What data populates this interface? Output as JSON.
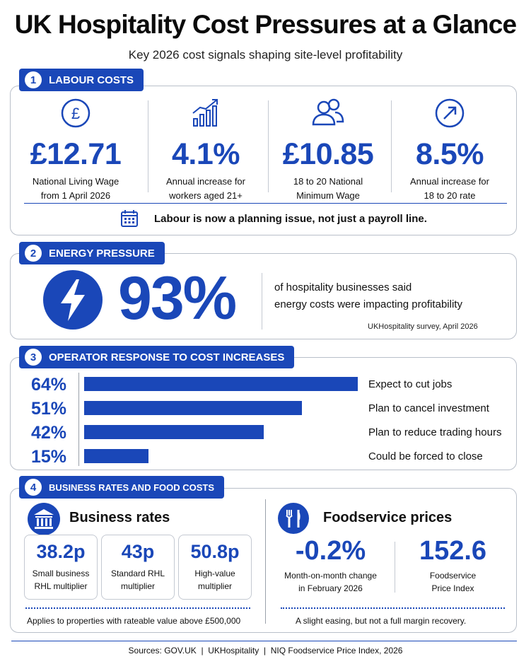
{
  "header": {
    "title": "UK Hospitality Cost Pressures at a Glance",
    "subtitle": "Key 2026 cost signals shaping site-level profitability"
  },
  "labour": {
    "number": "1",
    "heading": "LABOUR COSTS",
    "stats": [
      {
        "value": "£12.71",
        "label_line1": "National Living Wage",
        "label_line2": "from 1 April 2026",
        "icon": "pound-icon"
      },
      {
        "value": "4.1%",
        "label_line1": "Annual increase for",
        "label_line2": "workers aged 21+",
        "icon": "bar-growth-icon"
      },
      {
        "value": "£10.85",
        "label_line1": "18 to 20 National",
        "label_line2": "Minimum Wage",
        "icon": "people-icon"
      },
      {
        "value": "8.5%",
        "label_line1": "Annual increase for",
        "label_line2": "18 to 20 rate",
        "icon": "arrow-up-right-icon"
      }
    ],
    "note": "Labour is now a planning issue, not just a payroll line."
  },
  "energy": {
    "number": "2",
    "heading": "ENERGY PRESSURE",
    "value": "93%",
    "text_line1": "of hospitality businesses said",
    "text_line2": "energy costs were impacting profitability",
    "source": "UKHospitality survey, April 2026"
  },
  "response": {
    "number": "3",
    "heading": "OPERATOR RESPONSE TO COST INCREASES"
  },
  "chart_data": {
    "type": "bar",
    "categories": [
      "Expect to cut jobs",
      "Plan to cancel investment",
      "Plan to reduce trading hours",
      "Could be forced to close"
    ],
    "values": [
      64,
      51,
      42,
      15
    ],
    "value_labels": [
      "64%",
      "51%",
      "42%",
      "15%"
    ],
    "color": "#1a47b8"
  },
  "rates_food": {
    "number": "4",
    "heading": "BUSINESS RATES AND FOOD COSTS",
    "rates_title": "Business rates",
    "rates": [
      {
        "value": "38.2p",
        "label_line1": "Small business",
        "label_line2": "RHL multiplier"
      },
      {
        "value": "43p",
        "label_line1": "Standard RHL",
        "label_line2": "multiplier"
      },
      {
        "value": "50.8p",
        "label_line1": "High-value",
        "label_line2": "multiplier"
      }
    ],
    "rates_note": "Applies to properties with rateable value above £500,000",
    "food_title": "Foodservice prices",
    "food": [
      {
        "value": "-0.2%",
        "label_line1": "Month-on-month change",
        "label_line2": "in February 2026"
      },
      {
        "value": "152.6",
        "label_line1": "Foodservice",
        "label_line2": "Price Index"
      }
    ],
    "food_note": "A slight easing, but not a full margin recovery."
  },
  "footer": {
    "sources": "Sources: GOV.UK  |  UKHospitality  |  NIQ Foodservice Price Index, 2026"
  },
  "colors": {
    "accent": "#1a47b8",
    "border": "#b9bfc9"
  }
}
